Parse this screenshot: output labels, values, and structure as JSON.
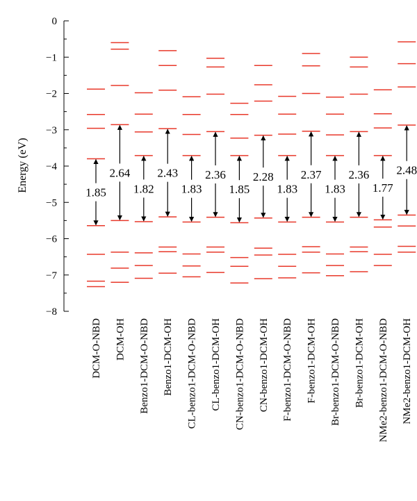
{
  "chart_data": {
    "type": "energy-level-diagram",
    "ylabel": "Energy (eV)",
    "ylim": [
      -8,
      0
    ],
    "yticks": [
      0,
      -1,
      -2,
      -3,
      -4,
      -5,
      -6,
      -7,
      -8
    ],
    "level_color": "#e8382a",
    "arrow_color": "#000000",
    "categories": [
      {
        "name": "DCM-O-NBD",
        "levels": [
          -1.88,
          -2.58,
          -2.96,
          -3.8,
          -5.64,
          -6.43,
          -7.17,
          -7.32
        ],
        "gap": "1.85",
        "gap_from": -3.8,
        "gap_to": -5.64
      },
      {
        "name": "DCM-OH",
        "levels": [
          -0.6,
          -0.78,
          -1.78,
          -2.86,
          -5.5,
          -6.37,
          -6.81,
          -7.2
        ],
        "gap": "2.64",
        "gap_from": -2.86,
        "gap_to": -5.5
      },
      {
        "name": "Benzo1-DCM-O-NBD",
        "levels": [
          -1.98,
          -2.57,
          -3.06,
          -3.71,
          -5.53,
          -6.39,
          -6.74,
          -7.09
        ],
        "gap": "1.82",
        "gap_from": -3.71,
        "gap_to": -5.53
      },
      {
        "name": "Benzo1-DCM-OH",
        "levels": [
          -0.82,
          -1.23,
          -1.91,
          -2.97,
          -5.4,
          -6.23,
          -6.36,
          -6.95
        ],
        "gap": "2.43",
        "gap_from": -2.97,
        "gap_to": -5.4
      },
      {
        "name": "CL-benzo1-DCM-O-NBD",
        "levels": [
          -2.09,
          -2.58,
          -3.13,
          -3.71,
          -5.54,
          -6.42,
          -6.75,
          -7.05
        ],
        "gap": "1.83",
        "gap_from": -3.71,
        "gap_to": -5.54
      },
      {
        "name": "CL-benzo1-DCM-OH",
        "levels": [
          -1.03,
          -1.27,
          -2.02,
          -3.05,
          -5.41,
          -6.23,
          -6.37,
          -6.93
        ],
        "gap": "2.36",
        "gap_from": -3.05,
        "gap_to": -5.41
      },
      {
        "name": "CN-benzo1-DCM-O-NBD",
        "levels": [
          -2.27,
          -2.58,
          -3.23,
          -3.71,
          -5.56,
          -6.52,
          -6.76,
          -7.22
        ],
        "gap": "1.85",
        "gap_from": -3.71,
        "gap_to": -5.56
      },
      {
        "name": "CN-benzo1-DCM-OH",
        "levels": [
          -1.23,
          -1.76,
          -2.21,
          -3.15,
          -5.43,
          -6.26,
          -6.45,
          -7.1
        ],
        "gap": "2.28",
        "gap_from": -3.15,
        "gap_to": -5.43
      },
      {
        "name": "F-benzo1-DCM-O-NBD",
        "levels": [
          -2.08,
          -2.57,
          -3.12,
          -3.71,
          -5.54,
          -6.43,
          -6.76,
          -7.08
        ],
        "gap": "1.83",
        "gap_from": -3.71,
        "gap_to": -5.54
      },
      {
        "name": "F-benzo1-DCM-OH",
        "levels": [
          -0.9,
          -1.24,
          -2.0,
          -3.04,
          -5.41,
          -6.22,
          -6.37,
          -6.94
        ],
        "gap": "2.37",
        "gap_from": -3.04,
        "gap_to": -5.41
      },
      {
        "name": "Br-benzo1-DCM-O-NBD",
        "levels": [
          -2.1,
          -2.57,
          -3.14,
          -3.71,
          -5.54,
          -6.42,
          -6.74,
          -7.02
        ],
        "gap": "1.83",
        "gap_from": -3.71,
        "gap_to": -5.54
      },
      {
        "name": "Br-benzo1-DCM-OH",
        "levels": [
          -1.0,
          -1.27,
          -2.02,
          -3.05,
          -5.41,
          -6.23,
          -6.36,
          -6.91
        ],
        "gap": "2.36",
        "gap_from": -3.05,
        "gap_to": -5.41
      },
      {
        "name": "NMe2-benzo1-DCM-O-NBD",
        "levels": [
          -1.9,
          -2.56,
          -2.95,
          -3.71,
          -5.48,
          -5.68,
          -6.43,
          -6.74
        ],
        "gap": "1.77",
        "gap_from": -3.71,
        "gap_to": -5.48
      },
      {
        "name": "NMe2-benzo1-DCM-OH",
        "levels": [
          -0.58,
          -1.18,
          -1.82,
          -2.87,
          -5.35,
          -5.65,
          -6.21,
          -6.37
        ],
        "gap": "2.48",
        "gap_from": -2.87,
        "gap_to": -5.35
      }
    ]
  }
}
